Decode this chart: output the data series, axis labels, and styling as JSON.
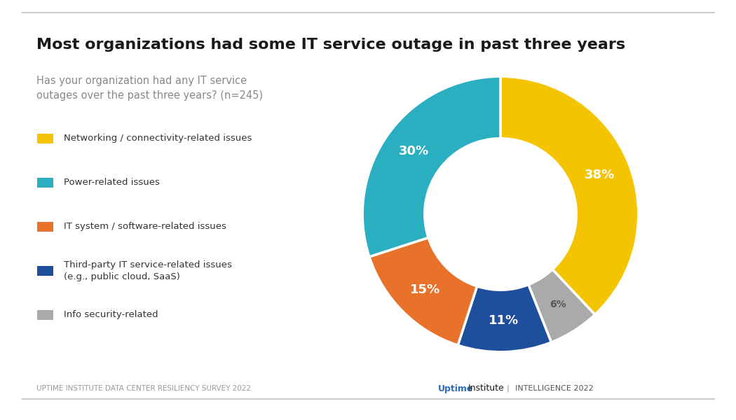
{
  "title": "Most organizations had some IT service outage in past three years",
  "subtitle": "Has your organization had any IT service\noutages over the past three years? (n=245)",
  "slices": [
    38,
    30,
    15,
    11,
    6
  ],
  "labels": [
    "38%",
    "30%",
    "15%",
    "11%",
    "6%"
  ],
  "colors": [
    "#F5C400",
    "#2AAFC0",
    "#E8722A",
    "#1E4F9C",
    "#AAAAAA"
  ],
  "legend_labels": [
    "Networking / connectivity-related issues",
    "Power-related issues",
    "IT system / software-related issues",
    "Third-party IT service-related issues\n(e.g., public cloud, SaaS)",
    "Info security-related"
  ],
  "footer_left": "UPTIME INSTITUTE DATA CENTER RESILIENCY SURVEY 2022",
  "background_color": "#FFFFFF",
  "title_color": "#1A1A1A",
  "subtitle_color": "#888888",
  "legend_color": "#333333",
  "footer_left_color": "#999999",
  "donut_width": 0.45,
  "wedge_order": [
    0,
    4,
    3,
    2,
    1
  ]
}
